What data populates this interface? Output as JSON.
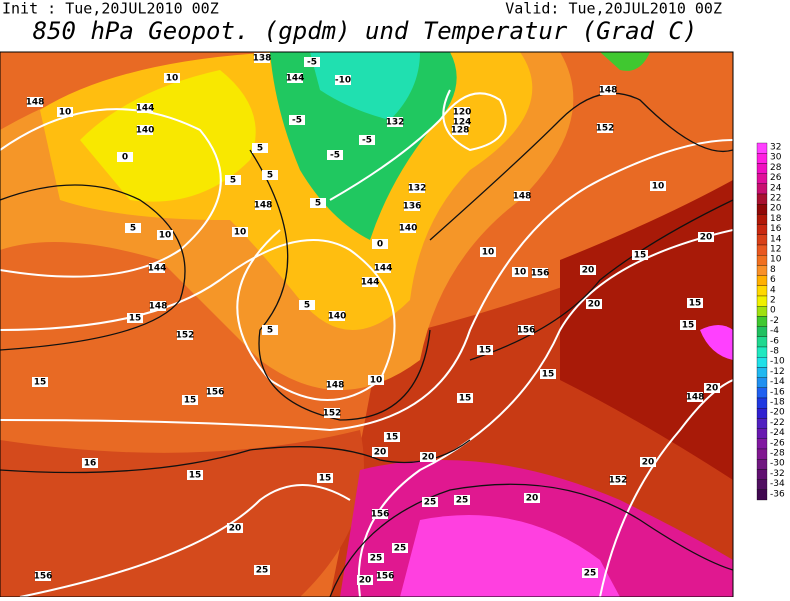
{
  "header": {
    "init": "Init : Tue,20JUL2010 00Z",
    "valid": "Valid: Tue,20JUL2010 00Z",
    "title": "850 hPa Geopot. (gpdm) und Temperatur (Grad C)"
  },
  "colorbar": {
    "levels": [
      32,
      30,
      28,
      26,
      24,
      22,
      20,
      18,
      16,
      14,
      12,
      10,
      8,
      6,
      4,
      2,
      0,
      -2,
      -4,
      -6,
      -8,
      -10,
      -12,
      -14,
      -16,
      -18,
      -20,
      -22,
      -24,
      -26,
      -28,
      -30,
      -32,
      -34,
      -36
    ],
    "colors": [
      "#ff40ff",
      "#ff20e0",
      "#f010c0",
      "#e0109a",
      "#c81070",
      "#a81030",
      "#900808",
      "#b01808",
      "#c82810",
      "#d84018",
      "#e85820",
      "#f07020",
      "#f89028",
      "#ffb000",
      "#ffd800",
      "#f0f000",
      "#a0e010",
      "#40c830",
      "#20c060",
      "#20d890",
      "#20e8c0",
      "#20e0e8",
      "#20b8f0",
      "#2090f0",
      "#2060f0",
      "#2038e0",
      "#3020d0",
      "#5020c0",
      "#6818b0",
      "#8018a0",
      "#801890",
      "#701880",
      "#601070",
      "#501060",
      "#400850"
    ]
  },
  "map_labels": [
    148,
    144,
    140,
    138,
    144,
    132,
    120,
    124,
    128,
    148,
    152,
    132,
    136,
    140,
    148,
    144,
    144,
    148,
    144,
    148,
    152,
    140,
    148,
    152,
    156,
    156,
    156,
    148,
    152,
    156,
    156,
    156,
    10,
    10,
    -5,
    -10,
    -5,
    -5,
    -5,
    0,
    5,
    5,
    5,
    5,
    0,
    5,
    10,
    10,
    10,
    10,
    10,
    15,
    20,
    20,
    20,
    15,
    15,
    20,
    5,
    5,
    10,
    15,
    15,
    15,
    15,
    20,
    20,
    15,
    15,
    15,
    16,
    15,
    15,
    20,
    25,
    25,
    20,
    20,
    25,
    25,
    20,
    25,
    25
  ]
}
